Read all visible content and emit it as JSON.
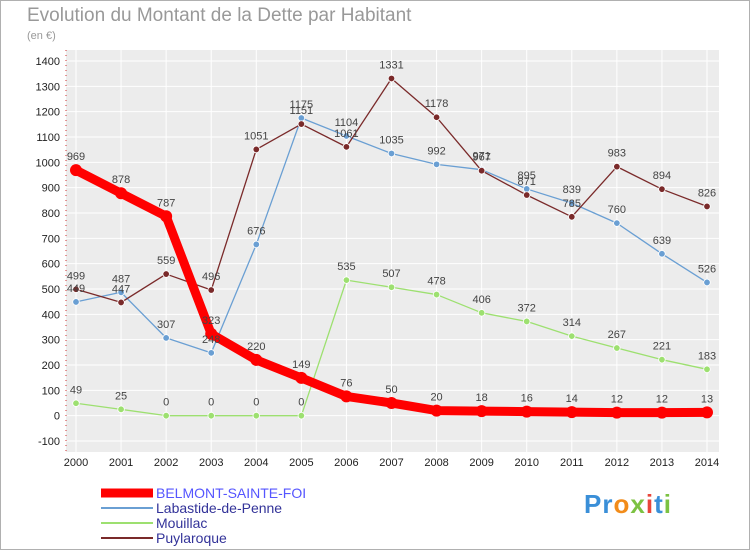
{
  "header": {
    "title": "Evolution du Montant de la Dette par Habitant",
    "unit": "(en €)"
  },
  "logo": {
    "text": "Proxiti"
  },
  "colors": {
    "background": "#ffffff",
    "plot_bg": "#ececec",
    "grid": "#ffffff"
  },
  "chart_data": {
    "type": "line",
    "title": "Evolution du Montant de la Dette par Habitant",
    "ylabel": "(en €)",
    "x": [
      "2000",
      "2001",
      "2002",
      "2003",
      "2004",
      "2005",
      "2006",
      "2007",
      "2008",
      "2009",
      "2010",
      "2011",
      "2012",
      "2013",
      "2014"
    ],
    "ylim": [
      -100,
      1400
    ],
    "yticks": [
      -100,
      0,
      100,
      200,
      300,
      400,
      500,
      600,
      700,
      800,
      900,
      1000,
      1100,
      1200,
      1300,
      1400
    ],
    "grid": true,
    "legend_position": "bottom-left",
    "series": [
      {
        "name": "BELMONT-SAINTE-FOI",
        "color": "#ff0000",
        "legend_color": "#ff0000",
        "text_color": "#5555ff",
        "values": [
          969,
          878,
          787,
          323,
          220,
          149,
          76,
          50,
          20,
          18,
          16,
          14,
          12,
          12,
          13
        ]
      },
      {
        "name": "Labastide-de-Penne",
        "color": "#6a9fd3",
        "legend_color": "#6a9fd3",
        "text_color": "#333399",
        "values": [
          449,
          487,
          307,
          248,
          676,
          1175,
          1104,
          1035,
          992,
          971,
          895,
          839,
          760,
          639,
          526
        ]
      },
      {
        "name": "Mouillac",
        "color": "#9de070",
        "legend_color": "#9de070",
        "text_color": "#333399",
        "values": [
          49,
          25,
          0,
          0,
          0,
          0,
          535,
          507,
          478,
          406,
          372,
          314,
          267,
          221,
          183
        ]
      },
      {
        "name": "Puylaroque",
        "color": "#7a2a2a",
        "legend_color": "#7a2a2a",
        "text_color": "#333399",
        "values": [
          499,
          447,
          559,
          496,
          1051,
          1151,
          1061,
          1331,
          1178,
          967,
          871,
          785,
          983,
          894,
          826
        ]
      }
    ]
  }
}
